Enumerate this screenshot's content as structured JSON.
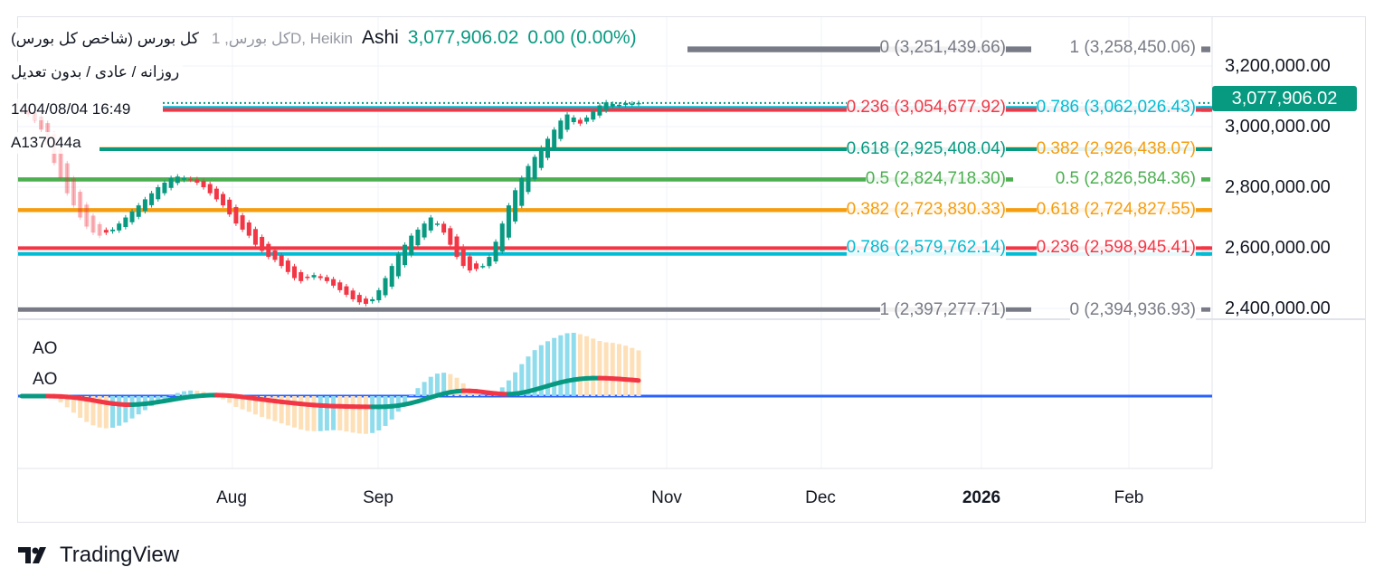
{
  "header": {
    "symbol": "کل بورس (شاخص کل بورس)",
    "symbol_ghost": "کل بورس, 1D, Heikin",
    "chart_type": "Ashi",
    "last": "3,077,906.02",
    "change": "0.00 (0.00%)",
    "interval": "روزانه / عادی / بدون تعدیل",
    "datetime": "1404/08/04 16:49",
    "user": "A137044a"
  },
  "colors": {
    "up": "#089981",
    "down": "#f23645",
    "ao_up": "#8fdcec",
    "ao_down": "#fde0b8",
    "zero_line": "#2962ff"
  },
  "price_axis": {
    "ticks": [
      "3,200,000.00",
      "3,000,000.00",
      "2,800,000.00",
      "2,600,000.00",
      "2,400,000.00"
    ],
    "last_price": "3,077,906.02"
  },
  "time_axis": {
    "ticks": [
      "Aug",
      "Sep",
      "Nov",
      "Dec",
      "2026",
      "Feb"
    ]
  },
  "fib_levels": [
    {
      "text": "1 (3,258,450.06)",
      "price": 3258450,
      "color": "#787b86"
    },
    {
      "text": "0 (3,251,439.66)",
      "price": 3251439,
      "color": "#787b86"
    },
    {
      "text": "0.786 (3,062,026.43)",
      "price": 3062026,
      "color": "#00bcd4"
    },
    {
      "text": "0.236 (3,054,677.92)",
      "price": 3054677,
      "color": "#f23645"
    },
    {
      "text": "0.382 (2,926,438.07)",
      "price": 2926438,
      "color": "#f59d0e"
    },
    {
      "text": "0.618 (2,925,408.04)",
      "price": 2925408,
      "color": "#089981"
    },
    {
      "text": "0.5 (2,826,584.36)",
      "price": 2826584,
      "color": "#4caf50"
    },
    {
      "text": "0.5 (2,824,718.30)",
      "price": 2824718,
      "color": "#4caf50"
    },
    {
      "text": "0.618 (2,724,827.55)",
      "price": 2724827,
      "color": "#f59d0e"
    },
    {
      "text": "0.382 (2,723,830.33)",
      "price": 2723830,
      "color": "#f59d0e"
    },
    {
      "text": "0.236 (2,598,945.41)",
      "price": 2598945,
      "color": "#f23645"
    },
    {
      "text": "0.786 (2,579,762.14)",
      "price": 2579762,
      "color": "#00bcd4"
    },
    {
      "text": "0 (2,394,936.93)",
      "price": 2394936,
      "color": "#787b86"
    },
    {
      "text": "1 (2,397,277.71)",
      "price": 2397277,
      "color": "#787b86"
    }
  ],
  "indicator": {
    "labels": [
      "AO",
      "AO"
    ]
  },
  "chart_data": {
    "type": "candlestick",
    "style": "Heikin Ashi",
    "unit": "thousands",
    "closes": [
      3050,
      3040,
      3020,
      2990,
      2940,
      2880,
      2830,
      2780,
      2740,
      2700,
      2670,
      2650,
      2640,
      2650,
      2660,
      2680,
      2700,
      2720,
      2740,
      2760,
      2780,
      2800,
      2815,
      2830,
      2835,
      2830,
      2825,
      2815,
      2800,
      2780,
      2760,
      2740,
      2710,
      2680,
      2660,
      2640,
      2610,
      2590,
      2570,
      2560,
      2540,
      2520,
      2500,
      2490,
      2500,
      2510,
      2500,
      2490,
      2475,
      2460,
      2445,
      2430,
      2420,
      2415,
      2430,
      2460,
      2500,
      2540,
      2580,
      2610,
      2640,
      2660,
      2680,
      2700,
      2680,
      2650,
      2610,
      2570,
      2540,
      2525,
      2530,
      2540,
      2570,
      2620,
      2680,
      2740,
      2790,
      2830,
      2870,
      2900,
      2930,
      2960,
      2990,
      3020,
      3040,
      3030,
      3010,
      3030,
      3050,
      3070,
      3080,
      3075,
      3072,
      3078,
      3076,
      3078
    ]
  },
  "footer": {
    "brand": "TradingView"
  }
}
